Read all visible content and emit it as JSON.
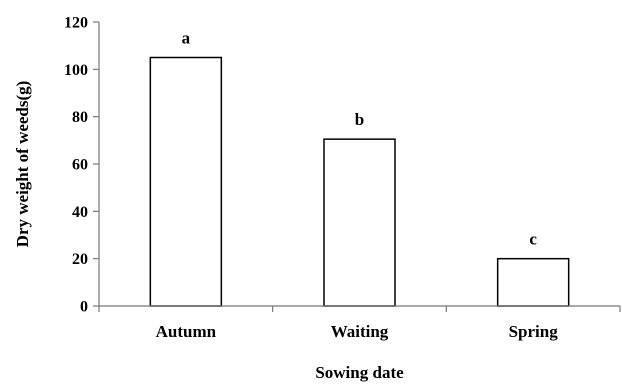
{
  "chart_data": {
    "type": "bar",
    "categories": [
      "Autumn",
      "Waiting",
      "Spring"
    ],
    "values": [
      105,
      70.5,
      20
    ],
    "data_labels": [
      "a",
      "b",
      "c"
    ],
    "title": "",
    "xlabel": "Sowing date",
    "ylabel": "Dry weight of weeds(g)",
    "ylim": [
      0,
      120
    ],
    "yticks": [
      0,
      20,
      40,
      60,
      80,
      100,
      120
    ],
    "grid": false,
    "legend": "none",
    "bar_fill": "#ffffff",
    "bar_stroke": "#000000",
    "axis_color": "#777777"
  }
}
